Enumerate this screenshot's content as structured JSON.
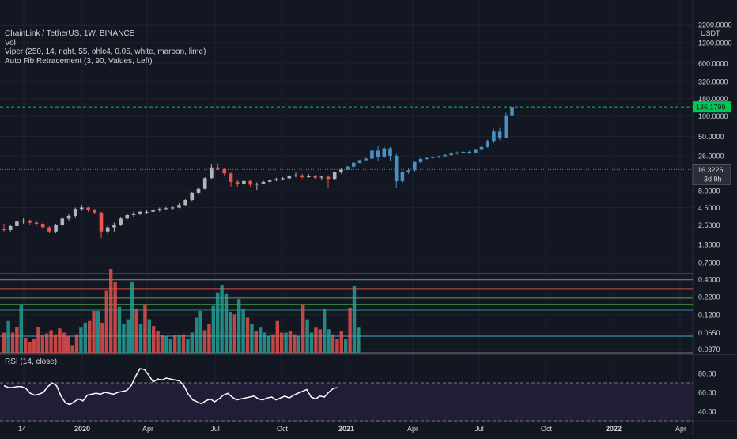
{
  "legend": {
    "title": "ChainLink / TetherUS, 1W, BINANCE",
    "vol": "Vol",
    "viper": "Viper (250, 14, right, 55, ohlc4, 0.05, white, maroon, lime)",
    "fib": "Auto Fib Retracement (3, 90, Values, Left)"
  },
  "price_unit": "USDT",
  "rsi_label": "RSI (14, close)",
  "price_axis_labels": [
    "2200.0000",
    "1200.0000",
    "600.0000",
    "320.0000",
    "180.0000",
    "100.0000",
    "50.0000",
    "26.0000",
    "8.0000",
    "4.5000",
    "2.5000",
    "1.3000",
    "0.7000",
    "0.4000",
    "0.2200",
    "0.1200",
    "0.0650",
    "0.0370"
  ],
  "price_tags": {
    "projected": "136.1799",
    "last": "16.3226",
    "countdown": "3d 9h"
  },
  "rsi_axis_labels": [
    "80.00",
    "60.00",
    "40.00"
  ],
  "time_axis_labels": [
    "14",
    "2020",
    "Apr",
    "Jul",
    "Oct",
    "2021",
    "Apr",
    "Jul",
    "Oct",
    "2022",
    "Apr"
  ],
  "colors": {
    "background": "#131722",
    "up_candle": "#b2b5be",
    "down_candle": "#ef5350",
    "projection_candle": "#4a90c2",
    "vol_up": "#26a69a",
    "vol_down": "#ef5350",
    "rsi_line": "#ffffff",
    "rsi_band": "#2a2140",
    "projected_tag": "#00c853"
  },
  "chart_data": [
    {
      "type": "candlestick",
      "title": "ChainLink / TetherUS, 1W, BINANCE",
      "scale": "log",
      "y_unit": "USDT",
      "ylim": [
        0.033,
        2400
      ],
      "x_ticks": [
        "14",
        "2020",
        "Apr",
        "Jul",
        "Oct",
        "2021",
        "Apr",
        "Jul",
        "Oct",
        "2022",
        "Apr"
      ],
      "candles": [
        {
          "t": "2019-11",
          "o": 2.2,
          "h": 2.6,
          "l": 2.0,
          "c": 2.1
        },
        {
          "t": "2019-11",
          "o": 2.1,
          "h": 2.5,
          "l": 2.0,
          "c": 2.4
        },
        {
          "t": "2019-11",
          "o": 2.4,
          "h": 3.0,
          "l": 2.3,
          "c": 2.8
        },
        {
          "t": "2019-12",
          "o": 2.8,
          "h": 3.2,
          "l": 2.6,
          "c": 2.9
        },
        {
          "t": "2019-12",
          "o": 2.9,
          "h": 3.0,
          "l": 2.5,
          "c": 2.7
        },
        {
          "t": "2019-12",
          "o": 2.7,
          "h": 2.8,
          "l": 2.4,
          "c": 2.6
        },
        {
          "t": "2019-12",
          "o": 2.6,
          "h": 2.7,
          "l": 2.2,
          "c": 2.3
        },
        {
          "t": "2020-01",
          "o": 2.3,
          "h": 2.4,
          "l": 1.9,
          "c": 2.0
        },
        {
          "t": "2020-01",
          "o": 2.0,
          "h": 2.6,
          "l": 1.9,
          "c": 2.5
        },
        {
          "t": "2020-01",
          "o": 2.5,
          "h": 3.3,
          "l": 2.4,
          "c": 3.1
        },
        {
          "t": "2020-01",
          "o": 3.1,
          "h": 3.6,
          "l": 2.9,
          "c": 3.4
        },
        {
          "t": "2020-02",
          "o": 3.4,
          "h": 4.5,
          "l": 3.2,
          "c": 4.3
        },
        {
          "t": "2020-02",
          "o": 4.3,
          "h": 4.9,
          "l": 4.0,
          "c": 4.5
        },
        {
          "t": "2020-02",
          "o": 4.5,
          "h": 4.6,
          "l": 3.9,
          "c": 4.1
        },
        {
          "t": "2020-02",
          "o": 4.1,
          "h": 4.3,
          "l": 3.6,
          "c": 3.8
        },
        {
          "t": "2020-03",
          "o": 3.8,
          "h": 3.9,
          "l": 1.6,
          "c": 2.0
        },
        {
          "t": "2020-03",
          "o": 2.0,
          "h": 2.5,
          "l": 1.8,
          "c": 2.3
        },
        {
          "t": "2020-03",
          "o": 2.3,
          "h": 2.7,
          "l": 2.0,
          "c": 2.5
        },
        {
          "t": "2020-03",
          "o": 2.5,
          "h": 3.3,
          "l": 2.4,
          "c": 3.1
        },
        {
          "t": "2020-04",
          "o": 3.1,
          "h": 3.7,
          "l": 3.0,
          "c": 3.5
        },
        {
          "t": "2020-04",
          "o": 3.5,
          "h": 3.9,
          "l": 3.3,
          "c": 3.7
        },
        {
          "t": "2020-04",
          "o": 3.7,
          "h": 4.0,
          "l": 3.5,
          "c": 3.9
        },
        {
          "t": "2020-04",
          "o": 3.9,
          "h": 4.1,
          "l": 3.6,
          "c": 3.9
        },
        {
          "t": "2020-05",
          "o": 3.9,
          "h": 4.4,
          "l": 3.8,
          "c": 4.2
        },
        {
          "t": "2020-05",
          "o": 4.2,
          "h": 4.5,
          "l": 3.9,
          "c": 4.3
        },
        {
          "t": "2020-05",
          "o": 4.3,
          "h": 4.6,
          "l": 4.1,
          "c": 4.4
        },
        {
          "t": "2020-06",
          "o": 4.4,
          "h": 4.7,
          "l": 4.2,
          "c": 4.5
        },
        {
          "t": "2020-06",
          "o": 4.5,
          "h": 5.2,
          "l": 4.4,
          "c": 4.9
        },
        {
          "t": "2020-06",
          "o": 4.9,
          "h": 6.0,
          "l": 4.8,
          "c": 5.8
        },
        {
          "t": "2020-06",
          "o": 5.8,
          "h": 7.6,
          "l": 5.6,
          "c": 7.4
        },
        {
          "t": "2020-07",
          "o": 7.4,
          "h": 8.8,
          "l": 7.1,
          "c": 8.5
        },
        {
          "t": "2020-07",
          "o": 8.5,
          "h": 12.6,
          "l": 8.3,
          "c": 12.2
        },
        {
          "t": "2020-08",
          "o": 12.2,
          "h": 19.8,
          "l": 11.9,
          "c": 17.5
        },
        {
          "t": "2020-08",
          "o": 17.5,
          "h": 20.0,
          "l": 16.0,
          "c": 16.6
        },
        {
          "t": "2020-08",
          "o": 16.6,
          "h": 17.5,
          "l": 13.0,
          "c": 14.3
        },
        {
          "t": "2020-08",
          "o": 14.3,
          "h": 14.9,
          "l": 9.2,
          "c": 10.8
        },
        {
          "t": "2020-09",
          "o": 10.8,
          "h": 11.5,
          "l": 9.0,
          "c": 9.9
        },
        {
          "t": "2020-09",
          "o": 9.9,
          "h": 11.7,
          "l": 9.3,
          "c": 11.1
        },
        {
          "t": "2020-09",
          "o": 11.1,
          "h": 11.4,
          "l": 9.0,
          "c": 9.8
        },
        {
          "t": "2020-10",
          "o": 9.8,
          "h": 10.6,
          "l": 8.2,
          "c": 10.2
        },
        {
          "t": "2020-10",
          "o": 10.2,
          "h": 11.3,
          "l": 10.0,
          "c": 10.8
        },
        {
          "t": "2020-10",
          "o": 10.8,
          "h": 11.6,
          "l": 10.4,
          "c": 11.3
        },
        {
          "t": "2020-10",
          "o": 11.3,
          "h": 12.4,
          "l": 11.0,
          "c": 11.8
        },
        {
          "t": "2020-11",
          "o": 11.8,
          "h": 12.6,
          "l": 11.3,
          "c": 12.1
        },
        {
          "t": "2020-11",
          "o": 12.1,
          "h": 13.6,
          "l": 11.9,
          "c": 13.0
        },
        {
          "t": "2020-11",
          "o": 13.0,
          "h": 14.7,
          "l": 12.5,
          "c": 13.4
        },
        {
          "t": "2020-11",
          "o": 13.4,
          "h": 14.1,
          "l": 12.0,
          "c": 12.6
        },
        {
          "t": "2020-12",
          "o": 12.6,
          "h": 13.9,
          "l": 12.4,
          "c": 13.2
        },
        {
          "t": "2020-12",
          "o": 13.2,
          "h": 13.6,
          "l": 11.9,
          "c": 12.4
        },
        {
          "t": "2020-12",
          "o": 12.4,
          "h": 13.3,
          "l": 11.6,
          "c": 12.8
        },
        {
          "t": "2020-12",
          "o": 12.8,
          "h": 13.4,
          "l": 8.6,
          "c": 11.9
        },
        {
          "t": "2021-01",
          "o": 11.9,
          "h": 15.1,
          "l": 11.6,
          "c": 14.8
        },
        {
          "t": "2021-01",
          "o": 14.8,
          "h": 17.1,
          "l": 14.2,
          "c": 16.3
        }
      ],
      "projection": [
        {
          "o": 16.3,
          "h": 18.5,
          "l": 15.9,
          "c": 18.0
        },
        {
          "o": 18.0,
          "h": 21.0,
          "l": 17.6,
          "c": 20.5
        },
        {
          "o": 20.5,
          "h": 23.0,
          "l": 20.0,
          "c": 22.4
        },
        {
          "o": 22.4,
          "h": 24.5,
          "l": 21.8,
          "c": 23.6
        },
        {
          "o": 23.6,
          "h": 33.0,
          "l": 23.0,
          "c": 31.0
        },
        {
          "o": 31.0,
          "h": 36.0,
          "l": 22.0,
          "c": 25.0
        },
        {
          "o": 25.0,
          "h": 36.0,
          "l": 24.0,
          "c": 33.5
        },
        {
          "o": 33.5,
          "h": 35.0,
          "l": 22.0,
          "c": 26.0
        },
        {
          "o": 26.0,
          "h": 27.5,
          "l": 8.7,
          "c": 11.0
        },
        {
          "o": 11.0,
          "h": 15.5,
          "l": 10.5,
          "c": 14.8
        },
        {
          "o": 14.8,
          "h": 17.0,
          "l": 14.0,
          "c": 15.9
        },
        {
          "o": 15.9,
          "h": 22.0,
          "l": 15.2,
          "c": 21.0
        },
        {
          "o": 21.0,
          "h": 25.0,
          "l": 20.0,
          "c": 23.4
        },
        {
          "o": 23.4,
          "h": 25.2,
          "l": 22.5,
          "c": 24.1
        },
        {
          "o": 24.1,
          "h": 26.0,
          "l": 23.2,
          "c": 25.2
        },
        {
          "o": 25.2,
          "h": 26.3,
          "l": 24.0,
          "c": 25.6
        },
        {
          "o": 25.6,
          "h": 27.5,
          "l": 25.0,
          "c": 26.8
        },
        {
          "o": 26.8,
          "h": 29.0,
          "l": 26.0,
          "c": 28.0
        },
        {
          "o": 28.0,
          "h": 30.0,
          "l": 27.0,
          "c": 29.1
        },
        {
          "o": 29.1,
          "h": 30.5,
          "l": 28.0,
          "c": 29.7
        },
        {
          "o": 29.7,
          "h": 31.0,
          "l": 27.8,
          "c": 28.6
        },
        {
          "o": 28.6,
          "h": 33.0,
          "l": 28.0,
          "c": 31.8
        },
        {
          "o": 31.8,
          "h": 36.0,
          "l": 31.0,
          "c": 35.0
        },
        {
          "o": 35.0,
          "h": 45.0,
          "l": 34.0,
          "c": 43.0
        },
        {
          "o": 43.0,
          "h": 65.0,
          "l": 40.0,
          "c": 59.0
        },
        {
          "o": 59.0,
          "h": 67.0,
          "l": 44.0,
          "c": 48.0
        },
        {
          "o": 48.0,
          "h": 112.0,
          "l": 47.0,
          "c": 100.0
        },
        {
          "o": 100.0,
          "h": 136.2,
          "l": 95.0,
          "c": 136.2
        }
      ],
      "horizontal_lines": [
        136.1799,
        16.3226
      ]
    },
    {
      "type": "bar",
      "title": "Vol",
      "ylim": [
        0,
        1
      ],
      "values": [
        0.24,
        0.38,
        0.24,
        0.31,
        0.58,
        0.18,
        0.13,
        0.16,
        0.31,
        0.21,
        0.23,
        0.27,
        0.22,
        0.29,
        0.24,
        0.2,
        0.09,
        0.22,
        0.3,
        0.36,
        0.38,
        0.5,
        0.5,
        0.36,
        0.74,
        1.0,
        0.84,
        0.55,
        0.35,
        0.4,
        0.85,
        0.52,
        0.35,
        0.58,
        0.4,
        0.32,
        0.26,
        0.21,
        0.2,
        0.16,
        0.21,
        0.21,
        0.22,
        0.16,
        0.24,
        0.42,
        0.5,
        0.27,
        0.35,
        0.56,
        0.72,
        0.81,
        0.7,
        0.48,
        0.46,
        0.64,
        0.52,
        0.42,
        0.35,
        0.26,
        0.3,
        0.24,
        0.2,
        0.22,
        0.38,
        0.24,
        0.24,
        0.26,
        0.22,
        0.2,
        0.58,
        0.4,
        0.24,
        0.3,
        0.28,
        0.52,
        0.28,
        0.22,
        0.17,
        0.26,
        0.16,
        0.54,
        0.8,
        0.3
      ],
      "directions": [
        "d",
        "u",
        "d",
        "d",
        "u",
        "d",
        "d",
        "d",
        "d",
        "d",
        "d",
        "d",
        "d",
        "d",
        "d",
        "d",
        "d",
        "d",
        "u",
        "u",
        "d",
        "d",
        "u",
        "d",
        "d",
        "d",
        "d",
        "u",
        "u",
        "u",
        "u",
        "d",
        "u",
        "d",
        "u",
        "d",
        "d",
        "d",
        "u",
        "u",
        "d",
        "u",
        "d",
        "u",
        "u",
        "u",
        "u",
        "d",
        "d",
        "u",
        "u",
        "u",
        "u",
        "u",
        "d",
        "u",
        "u",
        "d",
        "u",
        "d",
        "u",
        "u",
        "u",
        "d",
        "d",
        "d",
        "u",
        "d",
        "d",
        "u",
        "d",
        "u",
        "u",
        "d",
        "d",
        "u",
        "u",
        "d",
        "d",
        "d",
        "u",
        "d",
        "u",
        "u"
      ]
    },
    {
      "type": "line",
      "title": "RSI (14, close)",
      "ylim": [
        30,
        100
      ],
      "y_ticks": [
        80,
        60,
        40
      ],
      "band": [
        70,
        30
      ],
      "values": [
        67,
        65,
        65,
        66,
        66,
        64,
        59,
        57,
        58,
        60,
        66,
        70,
        67,
        56,
        49,
        47,
        50,
        53,
        51,
        57,
        58,
        59,
        58,
        60,
        59,
        58,
        60,
        61,
        62,
        67,
        77,
        85,
        84,
        78,
        71,
        74,
        73,
        75,
        74,
        73,
        72,
        67,
        58,
        52,
        50,
        48,
        51,
        53,
        50,
        53,
        57,
        59,
        55,
        52,
        53,
        54,
        55,
        56,
        53,
        52,
        54,
        55,
        52,
        54,
        56,
        54,
        57,
        59,
        61,
        63,
        55,
        53,
        56,
        55,
        60,
        64,
        65
      ]
    }
  ]
}
